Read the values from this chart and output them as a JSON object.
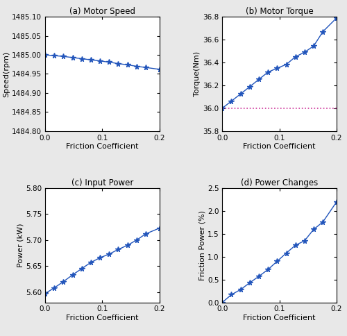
{
  "friction_coeff": [
    0,
    0.016,
    0.032,
    0.048,
    0.064,
    0.08,
    0.096,
    0.112,
    0.128,
    0.144,
    0.16,
    0.176,
    0.2
  ],
  "speed": [
    1485.0,
    1484.998,
    1484.996,
    1484.993,
    1484.99,
    1484.987,
    1484.984,
    1484.981,
    1484.977,
    1484.974,
    1484.97,
    1484.967,
    1484.962
  ],
  "torque": [
    36.0,
    36.062,
    36.125,
    36.188,
    36.252,
    36.316,
    36.35,
    36.383,
    36.45,
    36.49,
    36.545,
    36.67,
    36.79
  ],
  "input_power": [
    5.597,
    5.608,
    5.62,
    5.633,
    5.645,
    5.657,
    5.666,
    5.673,
    5.682,
    5.69,
    5.7,
    5.712,
    5.723
  ],
  "friction_power": [
    0.0,
    0.17,
    0.28,
    0.43,
    0.57,
    0.72,
    0.9,
    1.08,
    1.25,
    1.35,
    1.6,
    1.76,
    2.2
  ],
  "line_color": "#2255bb",
  "dotted_line_color": "#cc3399",
  "title_a": "(a) Motor Speed",
  "title_b": "(b) Motor Torque",
  "title_c": "(c) Input Power",
  "title_d": "(d) Power Changes",
  "xlabel": "Friction Coefficient",
  "ylabel_a": "Speed(rpm)",
  "ylabel_b": "Torque(Nm)",
  "ylabel_c": "Power (kW)",
  "ylabel_d": "Friction Power (%)",
  "xlim": [
    0,
    0.2
  ],
  "ylim_a": [
    1484.8,
    1485.1
  ],
  "ylim_b": [
    35.8,
    36.8
  ],
  "ylim_c": [
    5.58,
    5.8
  ],
  "ylim_d": [
    0,
    2.5
  ],
  "torque_ref": 36.0,
  "xticks": [
    0,
    0.1,
    0.2
  ],
  "yticks_a": [
    1484.8,
    1484.85,
    1484.9,
    1484.95,
    1485.0,
    1485.05,
    1485.1
  ],
  "yticks_b": [
    35.8,
    36.0,
    36.2,
    36.4,
    36.6,
    36.8
  ],
  "yticks_c": [
    5.6,
    5.65,
    5.7,
    5.75,
    5.8
  ],
  "yticks_d": [
    0.0,
    0.5,
    1.0,
    1.5,
    2.0,
    2.5
  ],
  "bg_color": "#e8e8e8"
}
